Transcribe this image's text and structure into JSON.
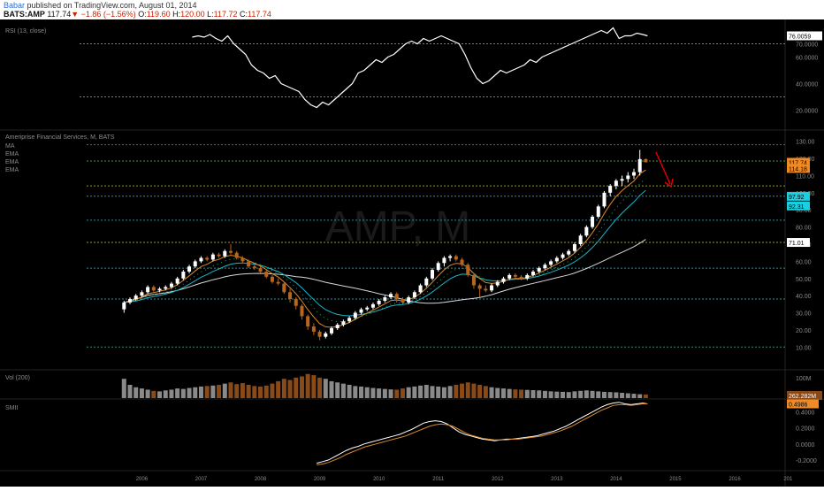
{
  "header": {
    "user": "Babar",
    "published": "published on TradingView.com, August 01, 2014",
    "symbol": "BATS:AMP",
    "last": "117.74",
    "change": "−1.86 (−1.56%)",
    "o_label": "O:",
    "o": "119.60",
    "h_label": "H:",
    "h": "120.00",
    "l_label": "L:",
    "l": "117.72",
    "c_label": "C:",
    "c": "117.74"
  },
  "colors": {
    "background": "#000000",
    "up_candle": "#ffffff",
    "down_candle": "#b8651d",
    "ema_orange": "#d98a2b",
    "ema_cyan": "#19b5c7",
    "ma_white": "#d8d8d8",
    "rsi_line": "#ffffff",
    "rsi_levels": "#c8641e",
    "arrow": "#e00000",
    "volume_up": "#8a8a8a",
    "volume_down": "#8a4a18"
  },
  "chart_data": [
    {
      "type": "line",
      "pane": "rsi",
      "title": "RSI (13, close)",
      "current_value": "76.0059",
      "ylim": [
        15,
        85
      ],
      "y_ticks": [
        "70.0000",
        "60.0000",
        "40.0000",
        "20.0000"
      ],
      "levels": [
        70,
        30
      ],
      "x": [
        2006.9,
        2007.0,
        2007.1,
        2007.2,
        2007.3,
        2007.4,
        2007.5,
        2007.6,
        2007.7,
        2007.8,
        2007.9,
        2008.0,
        2008.1,
        2008.2,
        2008.3,
        2008.4,
        2008.5,
        2008.6,
        2008.7,
        2008.8,
        2008.9,
        2009.0,
        2009.1,
        2009.2,
        2009.3,
        2009.4,
        2009.5,
        2009.6,
        2009.7,
        2009.8,
        2009.9,
        2010.0,
        2010.1,
        2010.2,
        2010.3,
        2010.4,
        2010.5,
        2010.6,
        2010.7,
        2010.8,
        2010.9,
        2011.0,
        2011.1,
        2011.2,
        2011.3,
        2011.4,
        2011.5,
        2011.6,
        2011.7,
        2011.8,
        2011.9,
        2012.0,
        2012.1,
        2012.2,
        2012.3,
        2012.4,
        2012.5,
        2012.6,
        2012.7,
        2012.8,
        2012.9,
        2013.0,
        2013.1,
        2013.2,
        2013.3,
        2013.4,
        2013.5,
        2013.6,
        2013.7,
        2013.8,
        2013.9,
        2014.0,
        2014.1,
        2014.2,
        2014.3,
        2014.4,
        2014.5,
        2014.58
      ],
      "values": [
        75,
        76,
        75,
        77,
        74,
        72,
        76,
        70,
        66,
        62,
        54,
        50,
        48,
        44,
        46,
        40,
        38,
        36,
        34,
        28,
        24,
        22,
        26,
        24,
        28,
        32,
        36,
        40,
        48,
        50,
        54,
        58,
        56,
        60,
        62,
        66,
        70,
        72,
        70,
        74,
        72,
        74,
        76,
        74,
        72,
        70,
        62,
        52,
        44,
        40,
        42,
        46,
        50,
        48,
        50,
        52,
        54,
        58,
        56,
        60,
        62,
        64,
        66,
        68,
        70,
        72,
        74,
        76,
        78,
        80,
        78,
        82,
        74,
        76,
        76,
        78,
        77,
        76
      ]
    },
    {
      "type": "candlestick",
      "pane": "price",
      "title": "Ameriprise Financial Services, M, BATS",
      "indicators": [
        "MA",
        "EMA",
        "EMA",
        "EMA"
      ],
      "ylim": [
        5,
        135
      ],
      "y_ticks": [
        "130.00",
        "120.00",
        "110.00",
        "100.00",
        "90.00",
        "80.00",
        "70.00",
        "60.00",
        "50.00",
        "40.00",
        "30.00",
        "20.00",
        "10.00"
      ],
      "x_ticks": [
        "2006",
        "2007",
        "2008",
        "2009",
        "2010",
        "2011",
        "2012",
        "2013",
        "2014",
        "2015",
        "2016",
        "201"
      ],
      "price_labels": [
        {
          "text": "117.74",
          "color": "#f08a24"
        },
        {
          "text": "114.18",
          "color": "#f08a24"
        },
        {
          "text": "97.92",
          "color": "#19d0e0"
        },
        {
          "text": "92.31",
          "color": "#19d0e0"
        },
        {
          "text": "71.01",
          "color": "#ffffff"
        }
      ],
      "horizontal_levels": [
        {
          "value": 128,
          "color": "#9a3aa8"
        },
        {
          "value": 118.5,
          "color": "#3e9a3e"
        },
        {
          "value": 104,
          "color": "#9a9a2a"
        },
        {
          "value": 98,
          "color": "#2a8a9a"
        },
        {
          "value": 84,
          "color": "#2a8a9a"
        },
        {
          "value": 71.01,
          "color": "#9a9a2a"
        },
        {
          "value": 56,
          "color": "#2a8a9a"
        },
        {
          "value": 38,
          "color": "#2a8a9a"
        },
        {
          "value": 10,
          "color": "#3e8a7a"
        }
      ],
      "x": [
        2005.75,
        2005.85,
        2005.95,
        2006.05,
        2006.15,
        2006.25,
        2006.35,
        2006.45,
        2006.55,
        2006.65,
        2006.75,
        2006.85,
        2006.95,
        2007.05,
        2007.15,
        2007.25,
        2007.35,
        2007.45,
        2007.55,
        2007.65,
        2007.75,
        2007.85,
        2007.95,
        2008.05,
        2008.15,
        2008.25,
        2008.35,
        2008.45,
        2008.55,
        2008.65,
        2008.75,
        2008.85,
        2008.95,
        2009.05,
        2009.15,
        2009.25,
        2009.35,
        2009.45,
        2009.55,
        2009.65,
        2009.75,
        2009.85,
        2009.95,
        2010.05,
        2010.15,
        2010.25,
        2010.35,
        2010.45,
        2010.55,
        2010.65,
        2010.75,
        2010.85,
        2010.95,
        2011.05,
        2011.15,
        2011.25,
        2011.35,
        2011.45,
        2011.55,
        2011.65,
        2011.75,
        2011.85,
        2011.95,
        2012.05,
        2012.15,
        2012.25,
        2012.35,
        2012.45,
        2012.55,
        2012.65,
        2012.75,
        2012.85,
        2012.95,
        2013.05,
        2013.15,
        2013.25,
        2013.35,
        2013.45,
        2013.55,
        2013.65,
        2013.75,
        2013.85,
        2013.95,
        2014.05,
        2014.15,
        2014.25,
        2014.35,
        2014.45,
        2014.55
      ],
      "open": [
        32,
        36,
        38,
        40,
        42,
        45,
        43,
        44,
        45,
        47,
        50,
        54,
        57,
        60,
        62,
        61,
        64,
        63,
        66,
        65,
        62,
        60,
        57,
        56,
        54,
        51,
        48,
        47,
        42,
        38,
        34,
        28,
        22,
        19,
        16,
        18,
        21,
        23,
        25,
        27,
        30,
        32,
        33,
        35,
        37,
        39,
        41,
        38,
        36,
        39,
        42,
        46,
        50,
        55,
        59,
        62,
        63,
        61,
        58,
        52,
        46,
        44,
        43,
        46,
        48,
        50,
        52,
        51,
        50,
        52,
        54,
        56,
        58,
        60,
        62,
        64,
        66,
        70,
        75,
        80,
        86,
        92,
        100,
        104,
        107,
        108,
        110,
        112,
        119.6
      ],
      "close": [
        36,
        38,
        40,
        42,
        45,
        43,
        44,
        45,
        47,
        50,
        54,
        57,
        60,
        62,
        61,
        64,
        63,
        66,
        65,
        62,
        60,
        57,
        56,
        54,
        51,
        48,
        47,
        42,
        38,
        34,
        28,
        22,
        19,
        16,
        18,
        21,
        23,
        25,
        27,
        30,
        32,
        33,
        35,
        37,
        39,
        41,
        38,
        36,
        39,
        42,
        46,
        50,
        55,
        59,
        62,
        63,
        61,
        58,
        52,
        46,
        44,
        43,
        46,
        48,
        50,
        52,
        51,
        50,
        52,
        54,
        56,
        58,
        60,
        62,
        64,
        66,
        70,
        75,
        80,
        86,
        92,
        100,
        104,
        107,
        108,
        110,
        112,
        119.6,
        117.74
      ],
      "high": [
        37,
        39,
        41,
        43,
        46,
        46,
        45,
        46,
        48,
        51,
        55,
        58,
        61,
        63,
        63,
        65,
        65,
        67,
        70,
        66,
        63,
        61,
        58,
        57,
        55,
        52,
        50,
        48,
        44,
        39,
        35,
        29,
        24,
        20,
        19,
        22,
        24,
        26,
        28,
        31,
        33,
        34,
        36,
        38,
        40,
        42,
        42,
        39,
        40,
        43,
        47,
        51,
        56,
        60,
        63,
        64,
        64,
        62,
        59,
        53,
        47,
        46,
        47,
        49,
        51,
        53,
        53,
        52,
        53,
        55,
        57,
        59,
        61,
        63,
        65,
        67,
        71,
        76,
        81,
        87,
        93,
        101,
        105,
        108,
        110,
        112,
        114,
        125,
        120
      ],
      "low": [
        30,
        35,
        37,
        39,
        41,
        42,
        42,
        43,
        44,
        46,
        49,
        53,
        56,
        59,
        60,
        60,
        62,
        62,
        64,
        61,
        59,
        56,
        55,
        53,
        50,
        47,
        46,
        41,
        36,
        32,
        26,
        20,
        17,
        14,
        15,
        17,
        20,
        22,
        24,
        26,
        29,
        31,
        32,
        34,
        36,
        38,
        36,
        35,
        35,
        38,
        41,
        45,
        49,
        54,
        57,
        60,
        60,
        57,
        51,
        44,
        39,
        42,
        42,
        45,
        47,
        49,
        50,
        49,
        49,
        51,
        53,
        55,
        57,
        59,
        61,
        63,
        65,
        69,
        74,
        79,
        85,
        91,
        98,
        102,
        104,
        106,
        108,
        110,
        117.72
      ]
    },
    {
      "type": "bar",
      "pane": "volume",
      "title": "Vol (200)",
      "y_ticks": [
        "100M"
      ],
      "current_value": "262.282M",
      "values": [
        80,
        55,
        45,
        40,
        35,
        30,
        28,
        32,
        35,
        40,
        38,
        42,
        45,
        48,
        50,
        52,
        55,
        60,
        65,
        58,
        62,
        55,
        50,
        48,
        52,
        60,
        70,
        80,
        75,
        85,
        90,
        100,
        95,
        85,
        80,
        70,
        65,
        60,
        55,
        50,
        48,
        45,
        42,
        40,
        38,
        36,
        35,
        40,
        45,
        48,
        52,
        55,
        50,
        48,
        45,
        50,
        55,
        60,
        65,
        60,
        55,
        50,
        45,
        42,
        40,
        38,
        36,
        35,
        34,
        33,
        32,
        30,
        28,
        27,
        26,
        25,
        28,
        30,
        32,
        30,
        28,
        26,
        25,
        24,
        22,
        20,
        18,
        16,
        15
      ]
    },
    {
      "type": "line",
      "pane": "smii",
      "title": "SMII",
      "current_value": "0.4986",
      "ylim": [
        -0.3,
        0.55
      ],
      "y_ticks": [
        "0.4000",
        "0.2000",
        "0.0000",
        "-0.2000"
      ],
      "series": [
        {
          "color": "#ffffff",
          "x": [
            2009.0,
            2009.1,
            2009.2,
            2009.3,
            2009.4,
            2009.5,
            2009.6,
            2009.7,
            2009.8,
            2009.9,
            2010.0,
            2010.1,
            2010.2,
            2010.3,
            2010.4,
            2010.5,
            2010.6,
            2010.7,
            2010.8,
            2010.9,
            2011.0,
            2011.1,
            2011.2,
            2011.3,
            2011.4,
            2011.5,
            2011.6,
            2011.7,
            2011.8,
            2011.9,
            2012.0,
            2012.1,
            2012.2,
            2012.3,
            2012.4,
            2012.5,
            2012.6,
            2012.7,
            2012.8,
            2012.9,
            2013.0,
            2013.1,
            2013.2,
            2013.3,
            2013.4,
            2013.5,
            2013.6,
            2013.7,
            2013.8,
            2013.9,
            2014.0,
            2014.1,
            2014.2,
            2014.3,
            2014.4,
            2014.5,
            2014.58
          ],
          "values": [
            -0.24,
            -0.22,
            -0.2,
            -0.16,
            -0.12,
            -0.08,
            -0.05,
            -0.03,
            0.0,
            0.02,
            0.04,
            0.06,
            0.08,
            0.1,
            0.12,
            0.15,
            0.18,
            0.22,
            0.26,
            0.28,
            0.29,
            0.28,
            0.25,
            0.2,
            0.15,
            0.12,
            0.1,
            0.08,
            0.06,
            0.05,
            0.04,
            0.05,
            0.06,
            0.06,
            0.07,
            0.08,
            0.09,
            0.1,
            0.12,
            0.14,
            0.16,
            0.19,
            0.22,
            0.26,
            0.3,
            0.34,
            0.38,
            0.42,
            0.46,
            0.49,
            0.51,
            0.52,
            0.5,
            0.49,
            0.5,
            0.51,
            0.5
          ]
        },
        {
          "color": "#d98a2b",
          "x": [
            2009.0,
            2009.1,
            2009.2,
            2009.3,
            2009.4,
            2009.5,
            2009.6,
            2009.7,
            2009.8,
            2009.9,
            2010.0,
            2010.1,
            2010.2,
            2010.3,
            2010.4,
            2010.5,
            2010.6,
            2010.7,
            2010.8,
            2010.9,
            2011.0,
            2011.1,
            2011.2,
            2011.3,
            2011.4,
            2011.5,
            2011.6,
            2011.7,
            2011.8,
            2011.9,
            2012.0,
            2012.1,
            2012.2,
            2012.3,
            2012.4,
            2012.5,
            2012.6,
            2012.7,
            2012.8,
            2012.9,
            2013.0,
            2013.1,
            2013.2,
            2013.3,
            2013.4,
            2013.5,
            2013.6,
            2013.7,
            2013.8,
            2013.9,
            2014.0,
            2014.1,
            2014.2,
            2014.3,
            2014.4,
            2014.5,
            2014.58
          ],
          "values": [
            -0.26,
            -0.25,
            -0.23,
            -0.2,
            -0.17,
            -0.13,
            -0.1,
            -0.07,
            -0.04,
            -0.02,
            0.0,
            0.02,
            0.04,
            0.06,
            0.08,
            0.1,
            0.13,
            0.16,
            0.19,
            0.22,
            0.24,
            0.25,
            0.24,
            0.22,
            0.18,
            0.14,
            0.11,
            0.09,
            0.07,
            0.06,
            0.05,
            0.05,
            0.05,
            0.06,
            0.06,
            0.07,
            0.08,
            0.09,
            0.1,
            0.12,
            0.14,
            0.16,
            0.19,
            0.22,
            0.26,
            0.3,
            0.34,
            0.38,
            0.42,
            0.45,
            0.48,
            0.49,
            0.49,
            0.48,
            0.49,
            0.5,
            0.5
          ]
        }
      ]
    }
  ]
}
